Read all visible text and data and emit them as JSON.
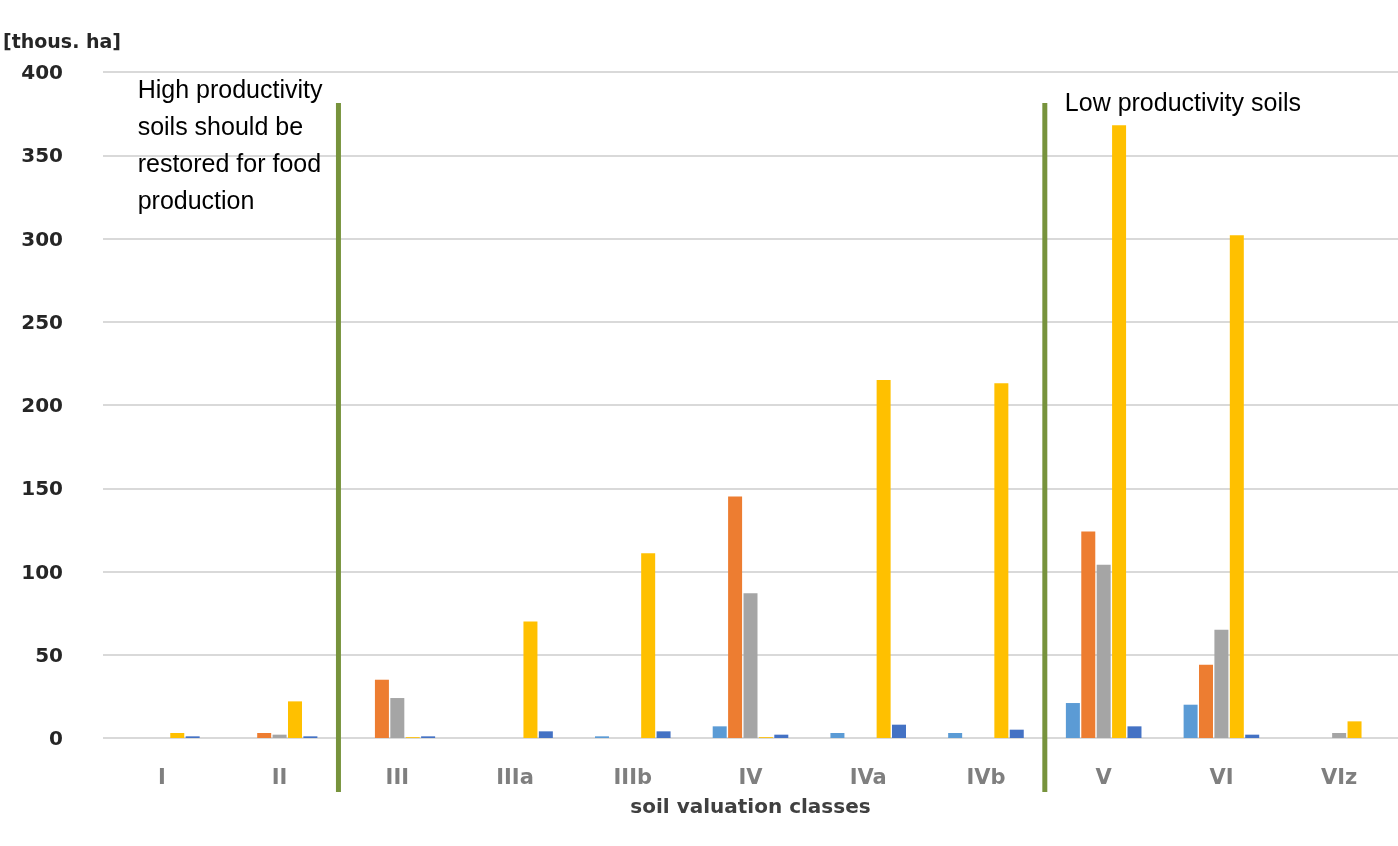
{
  "chart_data": {
    "type": "bar",
    "ylabel": "[thous. ha]",
    "xlabel": "soil valuation classes",
    "categories": [
      "I",
      "II",
      "III",
      "IIIa",
      "IIIb",
      "IV",
      "IVa",
      "IVb",
      "V",
      "VI",
      "VIz"
    ],
    "series": [
      {
        "color": "#5b9bd5",
        "values": [
          0,
          0,
          0,
          0,
          1,
          7,
          3,
          3,
          21,
          20,
          0
        ]
      },
      {
        "color": "#ed7d31",
        "values": [
          0,
          3,
          35,
          0,
          0,
          145,
          0,
          0,
          124,
          44,
          0
        ]
      },
      {
        "color": "#a5a5a5",
        "values": [
          0,
          2,
          24,
          0,
          0,
          87,
          0,
          0,
          104,
          65,
          3
        ]
      },
      {
        "color": "#ffc000",
        "values": [
          3,
          22,
          0.5,
          70,
          111,
          0.5,
          215,
          213,
          368,
          302,
          10
        ]
      },
      {
        "color": "#4472c4",
        "values": [
          1,
          1,
          1,
          4,
          4,
          2,
          8,
          5,
          7,
          2,
          0
        ]
      }
    ],
    "ylim": [
      0,
      400
    ],
    "yticks": [
      0,
      50,
      100,
      150,
      200,
      250,
      300,
      350,
      400
    ],
    "grid": "y",
    "annotations": [
      "High productivity soils should be restored for food production",
      "Low productivity soils"
    ]
  }
}
